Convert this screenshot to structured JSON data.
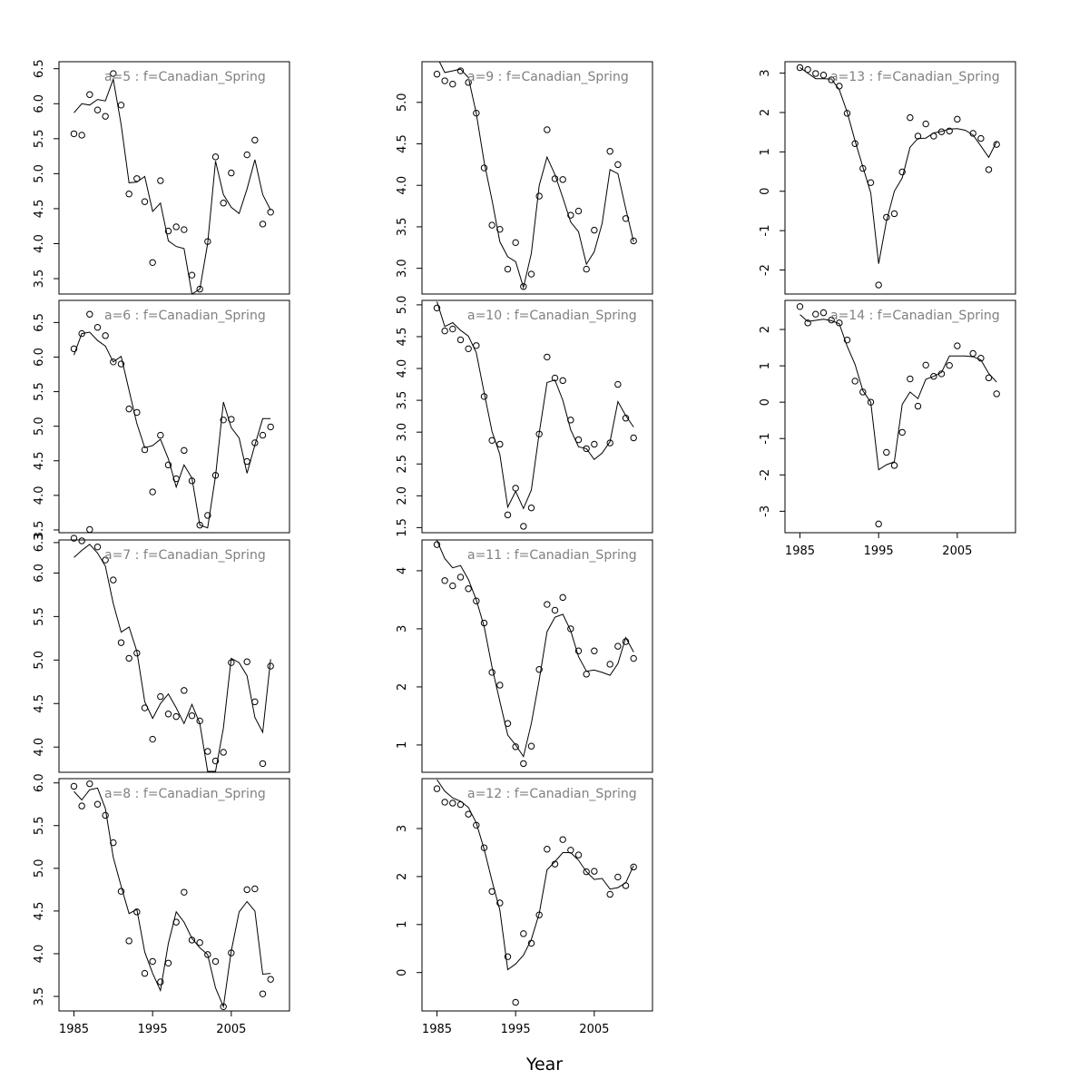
{
  "chart_data": {
    "type": "scatter",
    "xlabel": "Year",
    "x": [
      1985,
      1986,
      1987,
      1988,
      1989,
      1990,
      1991,
      1992,
      1993,
      1994,
      1995,
      1996,
      1997,
      1998,
      1999,
      2000,
      2001,
      2002,
      2003,
      2004,
      2005,
      2006,
      2007,
      2008,
      2009,
      2010
    ],
    "xlim": [
      1983.1,
      2012.4
    ],
    "xticks": [
      1985,
      1995,
      2005
    ],
    "panels": [
      {
        "title": "a=5  :  f=Canadian_Spring",
        "ylim": [
          3.28,
          6.6
        ],
        "yticks": [
          3.5,
          4.0,
          4.5,
          5.0,
          5.5,
          6.0,
          6.5
        ],
        "ytick_labels": [
          "3.5",
          "4.0",
          "4.5",
          "5.0",
          "5.5",
          "6.0",
          "6.5"
        ],
        "show_xaxis": false,
        "observed": [
          5.57,
          5.55,
          6.13,
          5.91,
          5.82,
          6.43,
          5.98,
          4.71,
          4.93,
          4.6,
          3.73,
          4.9,
          4.18,
          4.24,
          4.2,
          3.55,
          3.35,
          4.03,
          5.24,
          4.58,
          5.01,
          null,
          5.27,
          5.48,
          4.28,
          4.45
        ],
        "fitted": [
          5.87,
          6.0,
          5.98,
          6.06,
          6.04,
          6.35,
          5.7,
          4.87,
          4.88,
          4.96,
          4.46,
          4.58,
          4.04,
          3.96,
          3.93,
          3.28,
          3.35,
          4.0,
          5.18,
          4.7,
          4.52,
          4.43,
          4.78,
          5.2,
          4.7,
          4.48
        ]
      },
      {
        "title": "a=6  :  f=Canadian_Spring",
        "ylim": [
          3.46,
          6.82
        ],
        "yticks": [
          3.5,
          4.0,
          4.5,
          5.0,
          5.5,
          6.0,
          6.5
        ],
        "ytick_labels": [
          "3.5",
          "4.0",
          "4.5",
          "5.0",
          "5.5",
          "6.0",
          "6.5"
        ],
        "show_xaxis": false,
        "observed": [
          6.12,
          6.34,
          6.62,
          6.43,
          6.31,
          5.93,
          5.9,
          5.25,
          5.2,
          4.66,
          4.05,
          4.87,
          4.44,
          4.24,
          4.65,
          4.21,
          3.57,
          3.71,
          4.29,
          5.09,
          5.1,
          null,
          4.49,
          4.76,
          4.87,
          4.99
        ],
        "fitted": [
          6.03,
          6.34,
          6.36,
          6.24,
          6.16,
          5.93,
          6.01,
          5.52,
          5.04,
          4.69,
          4.72,
          4.81,
          4.53,
          4.12,
          4.44,
          4.25,
          3.57,
          3.53,
          4.28,
          5.35,
          4.98,
          4.83,
          4.32,
          4.73,
          5.11,
          5.11
        ]
      },
      {
        "title": "a=7  :  f=Canadian_Spring",
        "ylim": [
          3.71,
          6.38
        ],
        "yticks": [
          4.0,
          4.5,
          5.0,
          5.5,
          6.0
        ],
        "ytick_labels": [
          "4.0",
          "4.5",
          "5.0",
          "5.5",
          "6.0"
        ],
        "extra_ytick": {
          "value": 6.35,
          "label": "6.3"
        },
        "show_xaxis": false,
        "observed": [
          6.4,
          6.37,
          6.5,
          6.3,
          6.15,
          5.92,
          5.2,
          5.02,
          5.08,
          4.45,
          4.09,
          4.58,
          4.38,
          4.35,
          4.65,
          4.36,
          4.3,
          3.95,
          3.84,
          3.94,
          4.97,
          null,
          4.98,
          4.52,
          3.81,
          4.93
        ],
        "fitted": [
          6.18,
          6.26,
          6.33,
          6.23,
          6.08,
          5.65,
          5.32,
          5.38,
          5.1,
          4.52,
          4.33,
          4.5,
          4.61,
          4.45,
          4.27,
          4.49,
          4.27,
          3.72,
          3.72,
          4.22,
          5.02,
          4.97,
          4.82,
          4.34,
          4.17,
          5.01
        ]
      },
      {
        "title": "a=8  :  f=Canadian_Spring",
        "ylim": [
          3.33,
          6.05
        ],
        "yticks": [
          3.5,
          4.0,
          4.5,
          5.0,
          5.5,
          6.0
        ],
        "ytick_labels": [
          "3.5",
          "4.0",
          "4.5",
          "5.0",
          "5.5",
          "6.0"
        ],
        "show_xaxis": true,
        "observed": [
          5.96,
          5.73,
          5.99,
          5.75,
          5.62,
          5.3,
          4.73,
          4.15,
          4.49,
          3.77,
          3.91,
          3.67,
          3.89,
          4.37,
          4.72,
          4.16,
          4.13,
          3.99,
          3.91,
          3.38,
          4.01,
          null,
          4.75,
          4.76,
          3.53,
          3.7
        ],
        "fitted": [
          5.9,
          5.8,
          5.92,
          5.94,
          5.7,
          5.13,
          4.79,
          4.47,
          4.52,
          4.02,
          3.77,
          3.57,
          4.12,
          4.49,
          4.37,
          4.18,
          4.07,
          3.99,
          3.6,
          3.38,
          4.03,
          4.49,
          4.61,
          4.5,
          3.76,
          3.77
        ]
      },
      {
        "title": "a=9  :  f=Canadian_Spring",
        "ylim": [
          2.69,
          5.49
        ],
        "yticks": [
          3.0,
          3.5,
          4.0,
          4.5,
          5.0
        ],
        "ytick_labels": [
          "3.0",
          "3.5",
          "4.0",
          "4.5",
          "5.0"
        ],
        "show_xaxis": false,
        "observed": [
          5.34,
          5.26,
          5.22,
          5.38,
          5.24,
          4.87,
          4.21,
          3.52,
          3.47,
          2.99,
          3.31,
          2.78,
          2.93,
          3.87,
          4.67,
          4.08,
          4.07,
          3.64,
          3.69,
          2.99,
          3.46,
          null,
          4.41,
          4.25,
          3.6,
          3.33
        ],
        "fitted": [
          5.55,
          5.36,
          5.38,
          5.4,
          5.3,
          4.87,
          4.28,
          3.82,
          3.32,
          3.14,
          3.08,
          2.77,
          3.18,
          4.0,
          4.34,
          4.13,
          3.85,
          3.56,
          3.44,
          3.05,
          3.2,
          3.54,
          4.19,
          4.14,
          3.72,
          3.32
        ]
      },
      {
        "title": "a=10  :  f=Canadian_Spring",
        "ylim": [
          1.42,
          5.07
        ],
        "yticks": [
          1.5,
          2.0,
          2.5,
          3.0,
          3.5,
          4.0,
          4.5,
          5.0
        ],
        "ytick_labels": [
          "1.5",
          "2.0",
          "2.5",
          "3.0",
          "3.5",
          "4.0",
          "4.5",
          "5.0"
        ],
        "show_xaxis": false,
        "observed": [
          4.95,
          4.59,
          4.62,
          4.45,
          4.31,
          4.36,
          3.56,
          2.87,
          2.81,
          1.7,
          2.12,
          1.52,
          1.81,
          2.97,
          4.18,
          3.85,
          3.81,
          3.19,
          2.88,
          2.74,
          2.81,
          null,
          2.83,
          3.75,
          3.22,
          2.91
        ],
        "fitted": [
          5.05,
          4.66,
          4.72,
          4.6,
          4.51,
          4.25,
          3.62,
          3.01,
          2.65,
          1.82,
          2.07,
          1.8,
          2.09,
          2.99,
          3.78,
          3.82,
          3.5,
          3.04,
          2.77,
          2.74,
          2.57,
          2.67,
          2.85,
          3.48,
          3.26,
          3.08
        ]
      },
      {
        "title": "a=11  :  f=Canadian_Spring",
        "ylim": [
          0.53,
          4.53
        ],
        "yticks": [
          1,
          2,
          3,
          4
        ],
        "ytick_labels": [
          "1",
          "2",
          "3",
          "4"
        ],
        "show_xaxis": false,
        "observed": [
          4.45,
          3.83,
          3.74,
          3.89,
          3.69,
          3.48,
          3.1,
          2.25,
          2.03,
          1.37,
          0.97,
          0.68,
          0.98,
          2.3,
          3.42,
          3.32,
          3.54,
          3.0,
          2.62,
          2.22,
          2.62,
          null,
          2.39,
          2.7,
          2.78,
          2.49
        ],
        "fitted": [
          4.52,
          4.21,
          4.05,
          4.09,
          3.85,
          3.5,
          3.04,
          2.34,
          1.75,
          1.17,
          1.0,
          0.8,
          1.37,
          2.12,
          2.95,
          3.2,
          3.25,
          2.97,
          2.52,
          2.27,
          2.29,
          2.25,
          2.2,
          2.4,
          2.85,
          2.6
        ]
      },
      {
        "title": "a=12  :  f=Canadian_Spring",
        "ylim": [
          -0.8,
          4.04
        ],
        "yticks": [
          0,
          1,
          2,
          3
        ],
        "ytick_labels": [
          "0",
          "1",
          "2",
          "3"
        ],
        "show_xaxis": true,
        "observed": [
          3.83,
          3.55,
          3.53,
          3.5,
          3.3,
          3.07,
          2.6,
          1.69,
          1.45,
          0.33,
          -0.62,
          0.81,
          0.61,
          1.2,
          2.57,
          2.26,
          2.77,
          2.55,
          2.45,
          2.1,
          2.11,
          null,
          1.63,
          1.99,
          1.81,
          2.2
        ],
        "fitted": [
          4.02,
          3.78,
          3.64,
          3.57,
          3.44,
          3.12,
          2.57,
          1.91,
          1.3,
          0.06,
          0.18,
          0.36,
          0.69,
          1.23,
          2.14,
          2.31,
          2.5,
          2.5,
          2.34,
          2.1,
          1.94,
          1.96,
          1.74,
          1.77,
          1.87,
          2.23
        ]
      },
      {
        "title": "a=13  :  f=Canadian_Spring",
        "ylim": [
          -2.61,
          3.29
        ],
        "yticks": [
          -2,
          -1,
          0,
          1,
          2,
          3
        ],
        "ytick_labels": [
          "-2",
          "-1",
          "0",
          "1",
          "2",
          "3"
        ],
        "show_xaxis": false,
        "observed": [
          3.14,
          3.09,
          2.99,
          2.95,
          2.83,
          2.67,
          1.98,
          1.21,
          0.58,
          0.22,
          -2.38,
          -0.66,
          -0.57,
          0.49,
          1.87,
          1.4,
          1.71,
          1.4,
          1.51,
          1.53,
          1.83,
          null,
          1.47,
          1.34,
          0.55,
          1.19
        ],
        "fitted": [
          3.14,
          3.0,
          2.86,
          2.86,
          2.85,
          2.58,
          2.01,
          1.28,
          0.62,
          -0.04,
          -1.84,
          -0.76,
          0.0,
          0.34,
          1.12,
          1.34,
          1.35,
          1.48,
          1.52,
          1.58,
          1.59,
          1.55,
          1.43,
          1.15,
          0.86,
          1.26
        ]
      },
      {
        "title": "a=14  :  f=Canadian_Spring",
        "ylim": [
          -3.59,
          2.8
        ],
        "yticks": [
          -3,
          -2,
          -1,
          0,
          1,
          2
        ],
        "ytick_labels": [
          "-3",
          "-2",
          "-1",
          "0",
          "1",
          "2"
        ],
        "show_xaxis": true,
        "observed": [
          2.63,
          2.18,
          2.42,
          2.46,
          2.26,
          2.18,
          1.71,
          0.58,
          0.28,
          0.0,
          -3.35,
          -1.38,
          -1.74,
          -0.83,
          0.64,
          -0.11,
          1.02,
          0.71,
          0.78,
          1.01,
          1.55,
          null,
          1.34,
          1.21,
          0.67,
          0.23
        ],
        "fitted": [
          2.41,
          2.22,
          2.25,
          2.28,
          2.24,
          2.16,
          1.54,
          1.04,
          0.32,
          0.0,
          -1.86,
          -1.72,
          -1.64,
          -0.06,
          0.28,
          0.1,
          0.63,
          0.71,
          0.82,
          1.27,
          1.27,
          1.27,
          1.25,
          1.16,
          0.79,
          0.55
        ]
      }
    ]
  }
}
